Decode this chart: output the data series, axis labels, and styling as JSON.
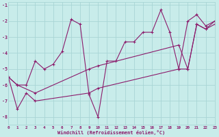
{
  "xlabel": "Windchill (Refroidissement éolien,°C)",
  "xlim": [
    0,
    23
  ],
  "ylim": [
    -8.5,
    -0.8
  ],
  "yticks": [
    -8,
    -7,
    -6,
    -5,
    -4,
    -3,
    -2,
    -1
  ],
  "xticks": [
    0,
    1,
    2,
    3,
    4,
    5,
    6,
    7,
    8,
    9,
    10,
    11,
    12,
    13,
    14,
    15,
    16,
    17,
    18,
    19,
    20,
    21,
    22,
    23
  ],
  "bg_color": "#c8ecea",
  "grid_color": "#a8d5d5",
  "line_color": "#8b1a6b",
  "line1_x": [
    0,
    1,
    2,
    3,
    4,
    5,
    6,
    7,
    8,
    9,
    10,
    11,
    12,
    13,
    14,
    15,
    16,
    17,
    18,
    19,
    20,
    21,
    22,
    23
  ],
  "line1_y": [
    -5.5,
    -6.0,
    -6.0,
    -4.5,
    -5.0,
    -4.7,
    -3.9,
    -1.9,
    -2.2,
    -6.6,
    -8.0,
    -4.5,
    -4.5,
    -3.3,
    -3.3,
    -2.7,
    -2.7,
    -1.3,
    -2.7,
    -5.0,
    -2.0,
    -1.6,
    -2.3,
    -2.0
  ],
  "line2_x": [
    0,
    1,
    2,
    3,
    9,
    10,
    19,
    20,
    21,
    22,
    23
  ],
  "line2_y": [
    -5.5,
    -7.5,
    -6.5,
    -7.0,
    -6.5,
    -6.2,
    -5.0,
    -5.0,
    -2.2,
    -2.5,
    -2.2
  ],
  "line3_x": [
    0,
    1,
    3,
    9,
    10,
    19,
    20,
    21,
    22,
    23
  ],
  "line3_y": [
    -5.5,
    -6.0,
    -6.5,
    -5.0,
    -4.8,
    -3.5,
    -5.0,
    -2.2,
    -2.5,
    -2.0
  ]
}
